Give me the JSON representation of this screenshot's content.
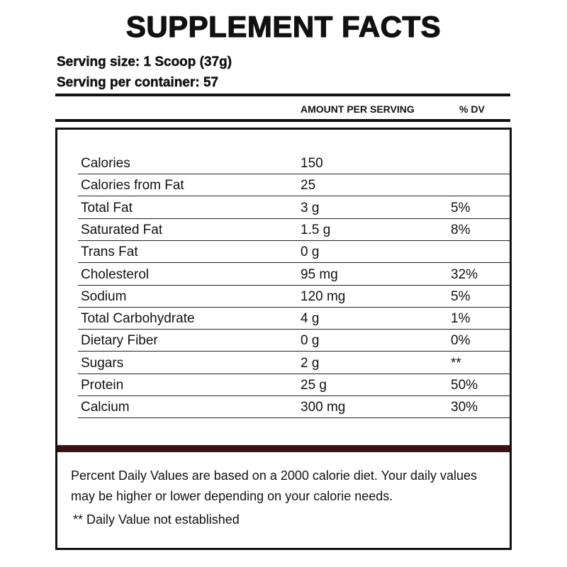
{
  "title": "SUPPLEMENT FACTS",
  "serving_size": "Serving size: 1 Scoop (37g)",
  "servings_per_container": "Serving per container: 57",
  "header": {
    "amount": "AMOUNT PER SERVING",
    "dv": "% DV"
  },
  "table": {
    "rows": [
      {
        "name": "Calories",
        "amount": "150"
      },
      {
        "name": "Calories from Fat",
        "amount": "25"
      },
      {
        "name": "Total Fat",
        "amount": "3 g",
        "dv": "5%"
      },
      {
        "name": "Saturated Fat",
        "amount": "1.5 g",
        "dv": "8%"
      },
      {
        "name": "Trans Fat",
        "amount": "0 g"
      },
      {
        "name": "Cholesterol",
        "amount": "95 mg",
        "dv": "32%"
      },
      {
        "name": "Sodium",
        "amount": "120 mg",
        "dv": "5%"
      },
      {
        "name": "Total Carbohydrate",
        "amount": "4 g",
        "dv": "1%"
      },
      {
        "name": "Dietary Fiber",
        "amount": "0 g",
        "dv": "0%"
      },
      {
        "name": "Sugars",
        "amount": "2 g",
        "dv": "**"
      },
      {
        "name": "Protein",
        "amount": "25 g",
        "dv": "50%"
      },
      {
        "name": "Calcium",
        "amount": "300 mg",
        "dv": "30%"
      }
    ]
  },
  "footnote": {
    "text": "Percent Daily Values are based on a 2000 calorie diet. Your daily values may be higher or lower depending on your calorie needs.",
    "note": "** Daily Value not established"
  }
}
